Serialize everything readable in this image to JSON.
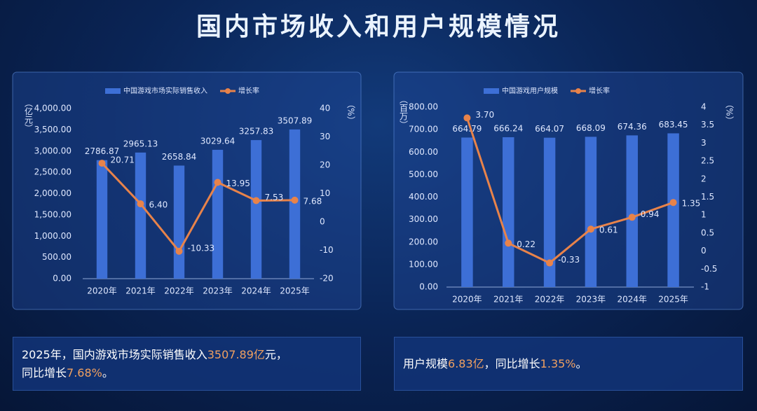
{
  "title": "国内市场收入和用户规模情况",
  "chart_data": [
    {
      "type": "bar",
      "categories": [
        "2020年",
        "2021年",
        "2022年",
        "2023年",
        "2024年",
        "2025年"
      ],
      "series": [
        {
          "name": "中国游戏市场实际销售收入",
          "type": "bar",
          "color": "#3d6fd6",
          "values": [
            2786.87,
            2965.13,
            2658.84,
            3029.64,
            3257.83,
            3507.89
          ]
        },
        {
          "name": "增长率",
          "type": "line",
          "axis": "y2",
          "color": "#e8834a",
          "values": [
            20.71,
            6.4,
            -10.33,
            13.95,
            7.53,
            7.68
          ],
          "value_labels": [
            "20.71",
            "6.40",
            "-10.33",
            "13.95",
            "7.53",
            "7.68"
          ]
        }
      ],
      "y_label": "（亿元）",
      "y2_label": "（%）",
      "ylim": [
        0,
        4000
      ],
      "yticks": [
        {
          "value": 0,
          "label": "0.00"
        },
        {
          "value": 500,
          "label": "500.00"
        },
        {
          "value": 1000,
          "label": "1,000.00"
        },
        {
          "value": 1500,
          "label": "1,500.00"
        },
        {
          "value": 2000,
          "label": "2,000.00"
        },
        {
          "value": 2500,
          "label": "2,500.00"
        },
        {
          "value": 3000,
          "label": "3,000.00"
        },
        {
          "value": 3500,
          "label": "3,500.00"
        },
        {
          "value": 4000,
          "label": "4,000.00"
        }
      ],
      "y2lim": [
        -20,
        40
      ],
      "y2ticks": [
        -20,
        -10,
        0,
        10,
        20,
        30,
        40
      ],
      "grid": false,
      "legend": "top"
    },
    {
      "type": "bar",
      "categories": [
        "2020年",
        "2021年",
        "2022年",
        "2023年",
        "2024年",
        "2025年"
      ],
      "series": [
        {
          "name": "中国游戏用户规模",
          "type": "bar",
          "color": "#3d6fd6",
          "values": [
            664.79,
            666.24,
            664.07,
            668.09,
            674.36,
            683.45
          ]
        },
        {
          "name": "增长率",
          "type": "line",
          "axis": "y2",
          "color": "#e8834a",
          "values": [
            3.7,
            0.22,
            -0.33,
            0.61,
            0.94,
            1.35
          ],
          "value_labels": [
            "3.70",
            "0.22",
            "-0.33",
            "0.61",
            "0.94",
            "1.35"
          ]
        }
      ],
      "y_label": "（百万）",
      "y2_label": "（%）",
      "ylim": [
        0,
        800
      ],
      "yticks": [
        {
          "value": 0,
          "label": "0.00"
        },
        {
          "value": 100,
          "label": "100.00"
        },
        {
          "value": 200,
          "label": "200.00"
        },
        {
          "value": 300,
          "label": "300.00"
        },
        {
          "value": 400,
          "label": "400.00"
        },
        {
          "value": 500,
          "label": "500.00"
        },
        {
          "value": 600,
          "label": "600.00"
        },
        {
          "value": 700,
          "label": "700.00"
        },
        {
          "value": 800,
          "label": "800.00"
        }
      ],
      "y2lim": [
        -1,
        4
      ],
      "y2ticks": [
        -1,
        -0.5,
        0,
        0.5,
        1,
        1.5,
        2,
        2.5,
        3,
        3.5,
        4
      ],
      "grid": false,
      "legend": "top"
    }
  ],
  "captions": [
    {
      "segments": [
        {
          "text": "2025年，国内游戏市场实际销售收入",
          "highlight": false
        },
        {
          "text": "3507.89亿",
          "highlight": true
        },
        {
          "text": "元，",
          "highlight": false
        },
        {
          "text": "同比增长",
          "highlight": false,
          "newline": true
        },
        {
          "text": "7.68%",
          "highlight": true
        },
        {
          "text": "。",
          "highlight": false
        }
      ]
    },
    {
      "segments": [
        {
          "text": "用户规模",
          "highlight": false
        },
        {
          "text": "6.83亿",
          "highlight": true
        },
        {
          "text": "，同比增长",
          "highlight": false
        },
        {
          "text": "1.35%",
          "highlight": true
        },
        {
          "text": "。",
          "highlight": false
        }
      ]
    }
  ]
}
